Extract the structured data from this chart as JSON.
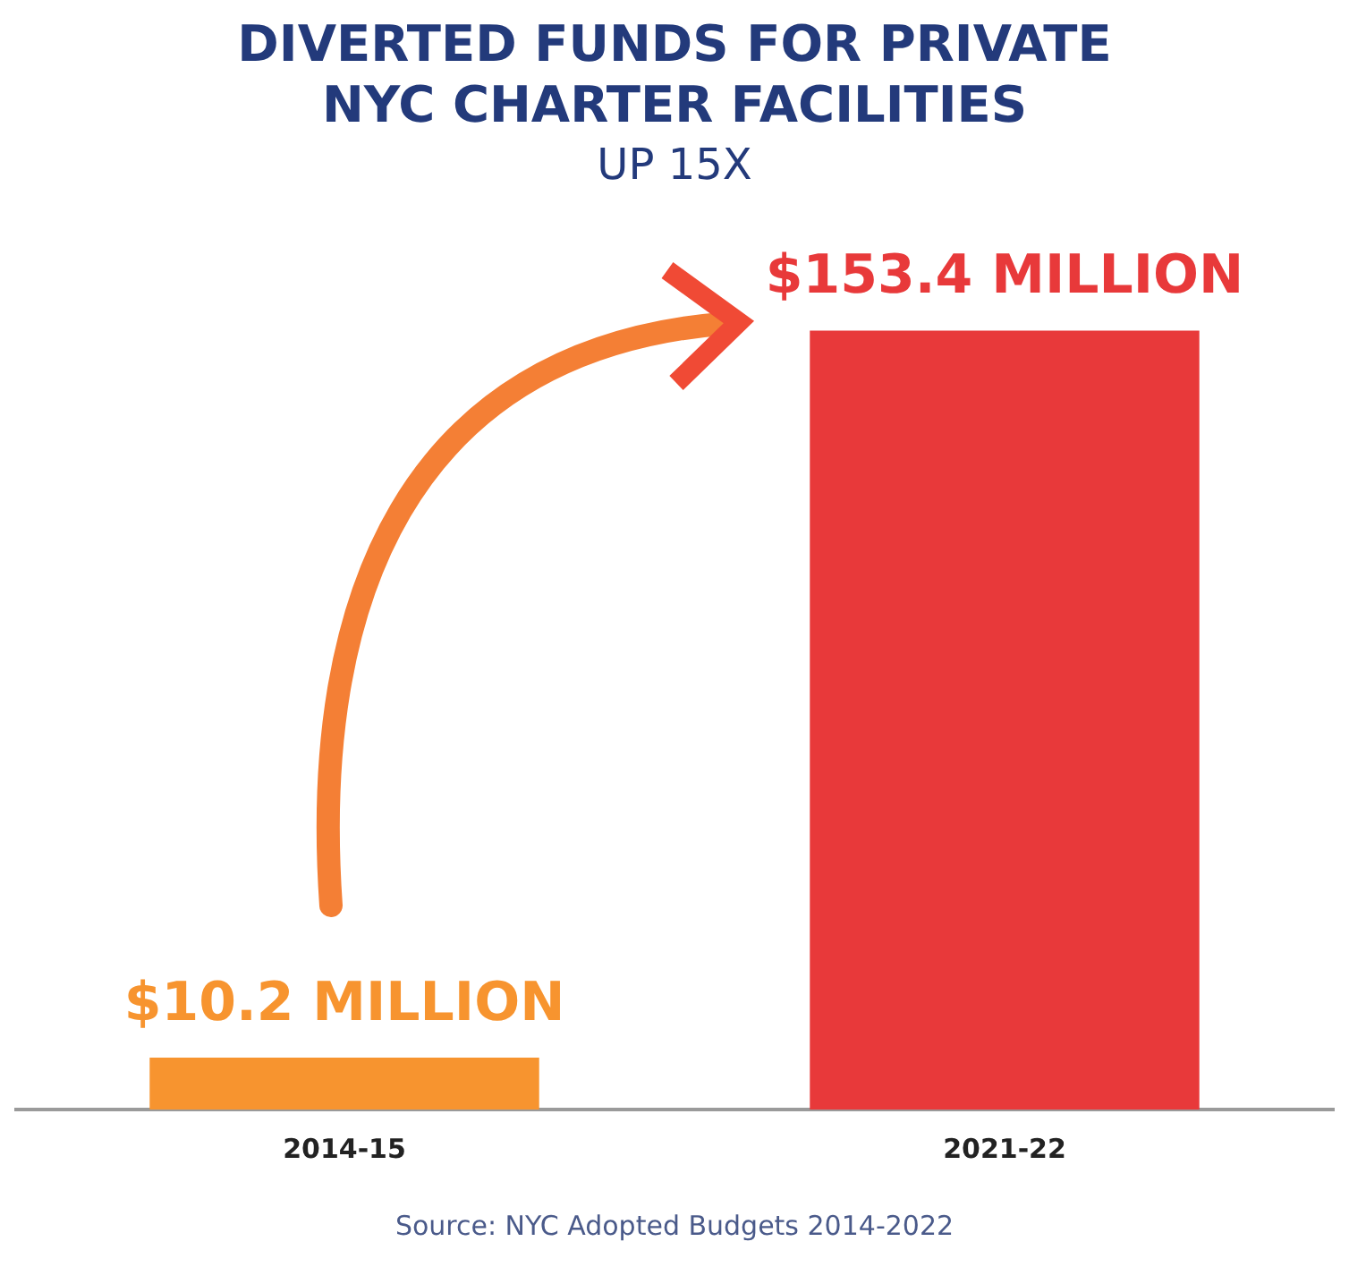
{
  "chart_data": {
    "type": "bar",
    "title": "DIVERTED FUNDS FOR PRIVATE NYC CHARTER FACILITIES",
    "subtitle": "UP 15X",
    "categories": [
      "2014-15",
      "2021-22"
    ],
    "values": [
      10.2,
      153.4
    ],
    "colors": [
      "#f7942f",
      "#e8393a"
    ],
    "value_labels": [
      "$10.2 MILLION",
      "$153.4 MILLION"
    ],
    "grid": false,
    "legend": false,
    "annotations": [
      "Source: NYC Adopted Budgets 2014-2022"
    ]
  }
}
